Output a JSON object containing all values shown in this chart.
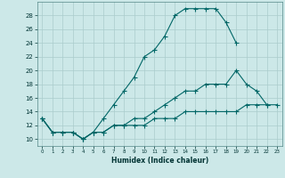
{
  "xlabel": "Humidex (Indice chaleur)",
  "bg_color": "#cce8e8",
  "grid_color": "#aacccc",
  "line_color": "#006666",
  "line1": {
    "x": [
      0,
      1,
      2,
      3,
      4,
      5,
      6,
      7,
      8,
      9,
      10,
      11,
      12,
      13,
      14,
      15,
      16,
      17,
      18,
      19
    ],
    "y": [
      13,
      11,
      11,
      11,
      10,
      11,
      13,
      15,
      17,
      19,
      22,
      23,
      25,
      28,
      29,
      29,
      29,
      29,
      27,
      24
    ]
  },
  "line2": {
    "x": [
      0,
      1,
      2,
      3,
      4,
      5,
      6,
      7,
      8,
      9,
      10,
      11,
      12,
      13,
      14,
      15,
      16,
      17,
      18,
      19,
      20,
      21,
      22
    ],
    "y": [
      13,
      11,
      11,
      11,
      10,
      11,
      11,
      12,
      12,
      13,
      13,
      14,
      15,
      16,
      17,
      17,
      18,
      18,
      18,
      20,
      18,
      17,
      15
    ]
  },
  "line3": {
    "x": [
      0,
      1,
      2,
      3,
      4,
      5,
      6,
      7,
      8,
      9,
      10,
      11,
      12,
      13,
      14,
      15,
      16,
      17,
      18,
      19,
      20,
      21,
      22,
      23
    ],
    "y": [
      13,
      11,
      11,
      11,
      10,
      11,
      11,
      12,
      12,
      12,
      12,
      13,
      13,
      13,
      14,
      14,
      14,
      14,
      14,
      14,
      15,
      15,
      15,
      15
    ]
  },
  "ylim": [
    9,
    30
  ],
  "xlim": [
    -0.5,
    23.5
  ],
  "yticks": [
    10,
    12,
    14,
    16,
    18,
    20,
    22,
    24,
    26,
    28
  ],
  "xticks": [
    0,
    1,
    2,
    3,
    4,
    5,
    6,
    7,
    8,
    9,
    10,
    11,
    12,
    13,
    14,
    15,
    16,
    17,
    18,
    19,
    20,
    21,
    22,
    23
  ],
  "marker_size": 1.8,
  "line_width": 0.8
}
